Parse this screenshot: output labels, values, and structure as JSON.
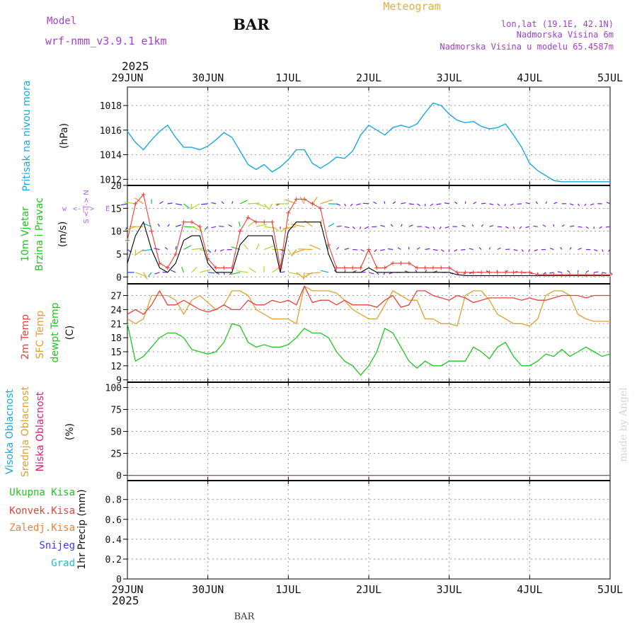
{
  "header": {
    "model_label": "Model",
    "model_name": "wrf-nmm_v3.9.1 e1km",
    "station": "BAR",
    "title": "Meteogram",
    "coords": "lon,lat (19.1E, 42.1N)",
    "elevation": "Nadmorska Visina 6m",
    "model_elevation": "Nadmorska Visina u modelu 65.4587m",
    "year_top": "2025",
    "year_bottom": "2025",
    "footer_station": "BAR",
    "credit": "made by Angel"
  },
  "colors": {
    "pressure": "#1aa7e0",
    "wind_speed": "#000000",
    "gust": "#e8403a",
    "temp2m": "#e8403a",
    "sfc": "#e0a030",
    "dew": "#22c422",
    "high_cloud": "#1aa7e0",
    "mid_cloud": "#e0a030",
    "low_cloud": "#d0207a",
    "total_precip": "#22c422",
    "conv_precip": "#e8403a",
    "frozen_precip": "#f08030",
    "snow": "#3a3ae8",
    "grad": "#20c0c0",
    "wind_label": "#22c422",
    "compass": "#b060e0",
    "header_purple": "#a040d0",
    "header_orange": "#e0b040"
  },
  "chart_data": [
    {
      "type": "line",
      "panel": "pressure",
      "ylabel_lines": [
        "Pritisak na nivou mora"
      ],
      "unit": "(hPa)",
      "ylim": [
        1011.5,
        1019.5
      ],
      "yticks": [
        1012,
        1014,
        1016,
        1018
      ],
      "xticks": [
        "29JUN",
        "30JUN",
        "1JUL",
        "2JUL",
        "3JUL",
        "4JUL",
        "5JUL"
      ],
      "grid": true,
      "series": [
        {
          "x": [
            0,
            0.1,
            0.2,
            0.3,
            0.4,
            0.5,
            0.6,
            0.7,
            0.8,
            0.9,
            1.0,
            1.1,
            1.2,
            1.3,
            1.4,
            1.5,
            1.6,
            1.7,
            1.8,
            1.9,
            2.0,
            2.1,
            2.2,
            2.3,
            2.4,
            2.5,
            2.6,
            2.7,
            2.8,
            2.9,
            3.0,
            3.1,
            3.2,
            3.3,
            3.4,
            3.5,
            3.6,
            3.7,
            3.8,
            3.9,
            4.0,
            4.1,
            4.2,
            4.3,
            4.4,
            4.5,
            4.6,
            4.7,
            4.8,
            4.9,
            5.0,
            5.1,
            5.2,
            5.3,
            5.4,
            5.5,
            5.6,
            5.7,
            5.8,
            5.9,
            6.0
          ],
          "values": [
            1015.9,
            1015.0,
            1014.4,
            1015.2,
            1015.9,
            1016.4,
            1015.4,
            1014.6,
            1014.6,
            1014.4,
            1014.7,
            1015.2,
            1015.8,
            1015.4,
            1014.3,
            1013.2,
            1012.8,
            1013.2,
            1012.6,
            1013.0,
            1013.6,
            1014.4,
            1014.4,
            1013.3,
            1012.9,
            1013.3,
            1013.8,
            1013.7,
            1014.3,
            1015.6,
            1016.4,
            1016.0,
            1015.6,
            1016.2,
            1016.4,
            1016.2,
            1016.5,
            1017.4,
            1018.2,
            1018.0,
            1017.3,
            1016.8,
            1016.6,
            1016.7,
            1016.3,
            1016.1,
            1016.2,
            1016.5,
            1015.6,
            1014.6,
            1013.3,
            1012.7,
            1012.3,
            1011.9,
            1011.8,
            1011.8,
            1011.8,
            1011.8,
            1011.8,
            1011.8,
            1011.8
          ]
        }
      ]
    },
    {
      "type": "line",
      "panel": "wind",
      "ylabel_lines": [
        "10m Vjetar",
        "Brzina i Pravac"
      ],
      "unit": "(m/s)",
      "compass": [
        "w",
        "<-|->",
        "E",
        "S",
        "<-|->",
        "N"
      ],
      "ylim": [
        -1.5,
        20
      ],
      "yticks": [
        0,
        5,
        10,
        15,
        20
      ],
      "grid": true,
      "series": [
        {
          "name": "speed",
          "x": [
            0,
            0.1,
            0.2,
            0.3,
            0.4,
            0.5,
            0.6,
            0.7,
            0.8,
            0.9,
            1.0,
            1.1,
            1.2,
            1.3,
            1.4,
            1.5,
            1.6,
            1.7,
            1.8,
            1.9,
            2.0,
            2.1,
            2.2,
            2.3,
            2.4,
            2.5,
            2.6,
            2.7,
            2.8,
            2.9,
            3.0,
            3.1,
            3.2,
            3.3,
            3.4,
            3.5,
            3.6,
            3.7,
            3.8,
            3.9,
            4.0,
            4.1,
            4.2,
            4.3,
            4.4,
            4.5,
            4.6,
            4.7,
            4.8,
            4.9,
            5.0,
            5.1,
            5.2,
            5.3,
            5.4,
            5.5,
            5.6,
            5.7,
            5.8,
            5.9,
            6.0
          ],
          "values": [
            3,
            9,
            12,
            6,
            2,
            1,
            3,
            8,
            9,
            9,
            3,
            1,
            1,
            1,
            7,
            9,
            9,
            9,
            9,
            1,
            10,
            12,
            12,
            12,
            12,
            5,
            1,
            1,
            1,
            1,
            2,
            1,
            1,
            1,
            1,
            1,
            1,
            1,
            1,
            1,
            1,
            0.5,
            0.3,
            0.3,
            0.3,
            0.3,
            0.3,
            0.3,
            0.3,
            0.3,
            0.3,
            0.3,
            0.3,
            0.3,
            0.3,
            0.3,
            0.3,
            0.3,
            0.3,
            0.3,
            0.3
          ]
        },
        {
          "name": "gust",
          "x": [
            0,
            0.1,
            0.2,
            0.3,
            0.4,
            0.5,
            0.6,
            0.7,
            0.8,
            0.9,
            1.0,
            1.1,
            1.2,
            1.3,
            1.4,
            1.5,
            1.6,
            1.7,
            1.8,
            1.9,
            2.0,
            2.1,
            2.2,
            2.3,
            2.4,
            2.5,
            2.6,
            2.7,
            2.8,
            2.9,
            3.0,
            3.1,
            3.2,
            3.3,
            3.4,
            3.5,
            3.6,
            3.7,
            3.8,
            3.9,
            4.0,
            4.1,
            4.2,
            4.3,
            4.4,
            4.5,
            4.6,
            4.7,
            4.8,
            4.9,
            5.0,
            5.1,
            5.2,
            5.3,
            5.4,
            5.5,
            5.6,
            5.7,
            5.8,
            5.9,
            6.0
          ],
          "values": [
            8,
            16,
            18,
            10,
            3,
            2,
            5,
            12,
            12,
            11,
            4,
            2,
            2,
            2,
            10,
            13,
            12,
            12,
            12,
            2,
            14,
            17,
            17,
            16,
            15,
            7,
            2,
            2,
            2,
            2,
            6,
            2,
            2,
            3,
            3,
            3,
            2,
            2,
            2,
            2,
            2,
            1,
            1,
            1,
            1,
            1,
            1,
            1,
            1,
            1,
            1,
            0.5,
            0.5,
            0.5,
            0.5,
            0.5,
            0.5,
            0.5,
            0.5,
            0.5,
            0.5
          ]
        }
      ]
    },
    {
      "type": "line",
      "panel": "temperature",
      "ylabel_lines": [
        "2m Temp",
        "SFC Temp",
        "dewpt Temp"
      ],
      "unit": "(C)",
      "ylim": [
        8.5,
        29.5
      ],
      "yticks": [
        9,
        12,
        15,
        18,
        21,
        24,
        27
      ],
      "grid": true,
      "series": [
        {
          "name": "2m Temp",
          "x": [
            0,
            0.1,
            0.2,
            0.3,
            0.4,
            0.5,
            0.6,
            0.7,
            0.8,
            0.9,
            1.0,
            1.1,
            1.2,
            1.3,
            1.4,
            1.5,
            1.6,
            1.7,
            1.8,
            1.9,
            2.0,
            2.1,
            2.2,
            2.3,
            2.4,
            2.5,
            2.6,
            2.7,
            2.8,
            2.9,
            3.0,
            3.1,
            3.2,
            3.3,
            3.4,
            3.5,
            3.6,
            3.7,
            3.8,
            3.9,
            4.0,
            4.1,
            4.2,
            4.3,
            4.4,
            4.5,
            4.6,
            4.7,
            4.8,
            4.9,
            5.0,
            5.1,
            5.2,
            5.3,
            5.4,
            5.5,
            5.6,
            5.7,
            5.8,
            5.9,
            6.0
          ],
          "values": [
            23,
            24,
            23,
            25,
            28,
            25,
            25,
            26,
            25,
            24,
            23.5,
            24,
            25,
            24,
            24,
            26,
            25,
            25,
            26,
            25.5,
            26,
            25,
            29,
            25.5,
            26,
            26,
            25,
            26,
            25,
            25,
            25,
            24.5,
            26,
            27,
            24.5,
            25,
            28,
            28,
            27,
            26.5,
            26,
            27,
            26.5,
            25.5,
            26,
            26.5,
            26.5,
            26.5,
            26.5,
            26,
            26.5,
            26,
            26,
            26.5,
            27,
            27,
            27,
            26.5,
            27,
            27,
            27
          ]
        },
        {
          "name": "SFC Temp",
          "x": [
            0,
            0.1,
            0.2,
            0.3,
            0.4,
            0.5,
            0.6,
            0.7,
            0.8,
            0.9,
            1.0,
            1.1,
            1.2,
            1.3,
            1.4,
            1.5,
            1.6,
            1.7,
            1.8,
            1.9,
            2.0,
            2.1,
            2.2,
            2.3,
            2.4,
            2.5,
            2.6,
            2.7,
            2.8,
            2.9,
            3.0,
            3.1,
            3.2,
            3.3,
            3.4,
            3.5,
            3.6,
            3.7,
            3.8,
            3.9,
            4.0,
            4.1,
            4.2,
            4.3,
            4.4,
            4.5,
            4.6,
            4.7,
            4.8,
            4.9,
            5.0,
            5.1,
            5.2,
            5.3,
            5.4,
            5.5,
            5.6,
            5.7,
            5.8,
            5.9,
            6.0
          ],
          "values": [
            22,
            21,
            22,
            27,
            27,
            27,
            26,
            23,
            26,
            27,
            25.5,
            24,
            25,
            28,
            28,
            27,
            24,
            23,
            22,
            22,
            22,
            21,
            29,
            28,
            28,
            28,
            27.5,
            26,
            24,
            23,
            22,
            22,
            25,
            28,
            27,
            26,
            26,
            22,
            22,
            21,
            21,
            20.5,
            27,
            28,
            28,
            26,
            23,
            22,
            21,
            21,
            20.5,
            22,
            27,
            28,
            28,
            27,
            23,
            22,
            21.5,
            21.5,
            21.5
          ]
        },
        {
          "name": "dewpt Temp",
          "x": [
            0,
            0.1,
            0.2,
            0.3,
            0.4,
            0.5,
            0.6,
            0.7,
            0.8,
            0.9,
            1.0,
            1.1,
            1.2,
            1.3,
            1.4,
            1.5,
            1.6,
            1.7,
            1.8,
            1.9,
            2.0,
            2.1,
            2.2,
            2.3,
            2.4,
            2.5,
            2.6,
            2.7,
            2.8,
            2.9,
            3.0,
            3.1,
            3.2,
            3.3,
            3.4,
            3.5,
            3.6,
            3.7,
            3.8,
            3.9,
            4.0,
            4.1,
            4.2,
            4.3,
            4.4,
            4.5,
            4.6,
            4.7,
            4.8,
            4.9,
            5.0,
            5.1,
            5.2,
            5.3,
            5.4,
            5.5,
            5.6,
            5.7,
            5.8,
            5.9,
            6.0
          ],
          "values": [
            21,
            13,
            14,
            16,
            18,
            19,
            19,
            18,
            15.5,
            15,
            14.5,
            15,
            17,
            21,
            20.5,
            17,
            16,
            16.5,
            16,
            16,
            16.5,
            18,
            20,
            19,
            19,
            18,
            15,
            13,
            12,
            10,
            12,
            15,
            20,
            19,
            16,
            13,
            11.5,
            13,
            12,
            12,
            13,
            13,
            13,
            16,
            15,
            13.5,
            16,
            17,
            14,
            12,
            12,
            13,
            14.5,
            14,
            15.5,
            14,
            15,
            16,
            15,
            14,
            14.5
          ]
        }
      ]
    },
    {
      "type": "line",
      "panel": "cloud",
      "ylabel_lines": [
        "Visoka Oblacnost",
        "Srednja Oblacnost",
        "Niska Oblacnost"
      ],
      "unit": "(%)",
      "ylim": [
        -6,
        106
      ],
      "yticks": [
        0,
        25,
        50,
        75,
        100
      ],
      "grid": true,
      "series": [
        {
          "name": "Visoka Oblacnost",
          "x": [
            0,
            6
          ],
          "values": [
            0,
            0
          ]
        },
        {
          "name": "Srednja Oblacnost",
          "x": [
            0,
            6
          ],
          "values": [
            0,
            0
          ]
        },
        {
          "name": "Niska Oblacnost",
          "x": [
            0,
            6
          ],
          "values": [
            0,
            0
          ]
        }
      ]
    },
    {
      "type": "bar",
      "panel": "precip",
      "legend": [
        "Ukupna Kisa",
        "Konvek.Kisa",
        "Zaledj.Kisa",
        "Snijeg",
        "Grad"
      ],
      "ylabel_lines": [
        "1hr Precip"
      ],
      "unit": "(mm)",
      "ylim": [
        0,
        0.99
      ],
      "yticks": [
        0,
        0.2,
        0.4,
        0.6,
        0.8
      ],
      "ytick_labels": [
        "0",
        "0.2",
        "0.4",
        "0.6",
        "0.8"
      ],
      "grid": true,
      "values": [
        0,
        0,
        0,
        0,
        0,
        0
      ]
    }
  ]
}
